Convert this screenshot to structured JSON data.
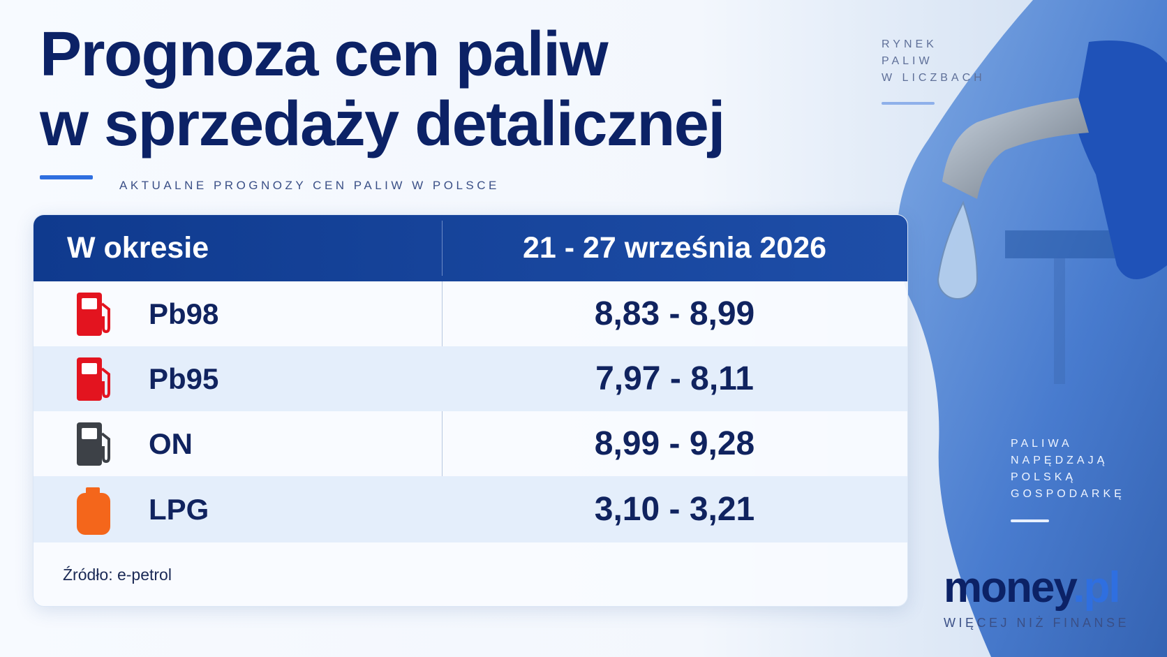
{
  "header": {
    "title_line1": "Prognoza cen paliw",
    "title_line2": "w sprzedaży detalicznej",
    "subtitle": "AKTUALNE PROGNOZY CEN PALIW W POLSCE"
  },
  "side_top": [
    "RYNEK",
    "PALIW",
    "W LICZBACH"
  ],
  "side_bottom": [
    "PALIWA",
    "NAPĘDZAJĄ",
    "POLSKĄ",
    "GOSPODARKĘ"
  ],
  "table": {
    "header": [
      "W okresie",
      "21 - 27 września 2026"
    ],
    "rows": [
      [
        "Pb98",
        "8,83 - 8,99"
      ],
      [
        "Pb95",
        "7,97 - 8,11"
      ],
      [
        "ON",
        "8,99 - 9,28"
      ],
      [
        "LPG",
        "3,10 - 3,21"
      ]
    ]
  },
  "source": "Źródło: e-petrol",
  "logo": {
    "name": "money",
    "suffix": ".pl",
    "tagline": "WIĘCEJ NIŻ FINANSE"
  }
}
